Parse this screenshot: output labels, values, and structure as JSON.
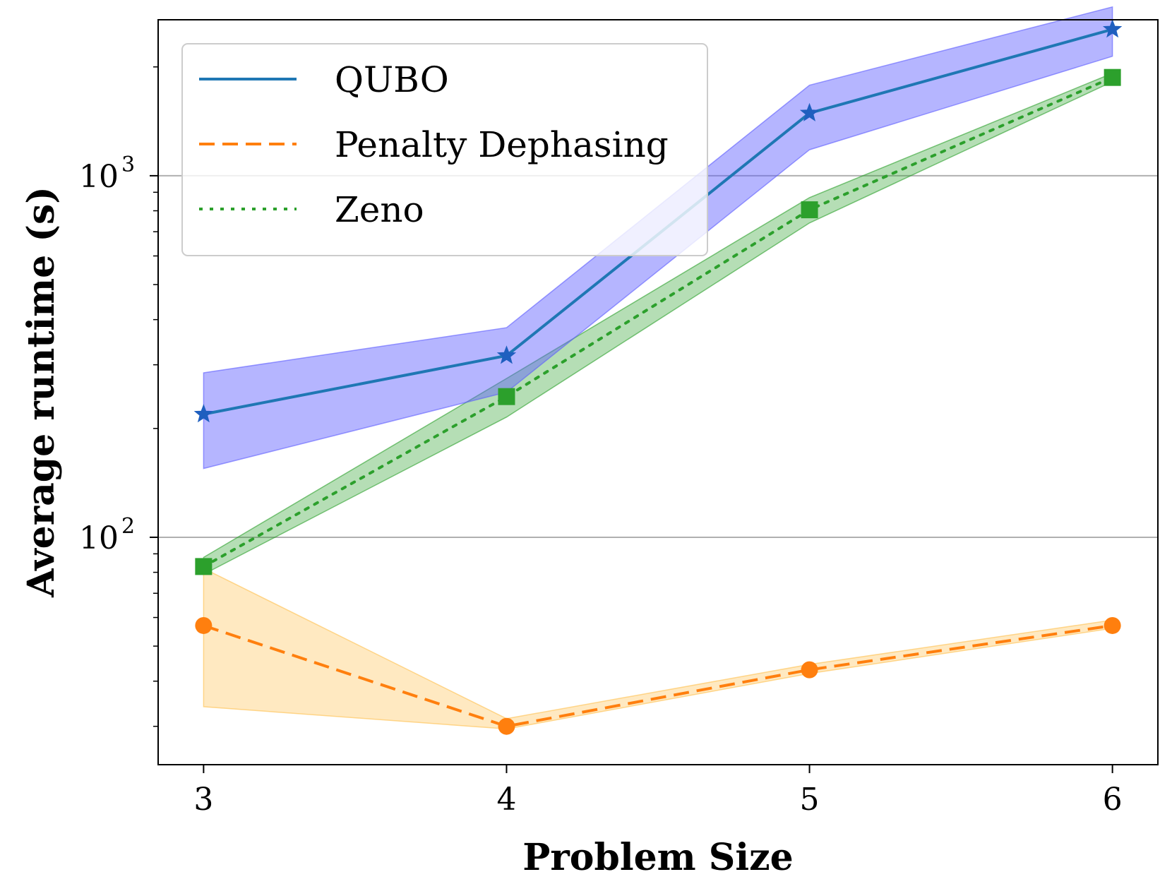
{
  "chart_data": {
    "type": "line",
    "xlabel": "Problem Size",
    "ylabel": "Average runtime (s)",
    "x": [
      3,
      4,
      5,
      6
    ],
    "xlim": [
      2.85,
      6.15
    ],
    "ylim": [
      23.5,
      2700
    ],
    "yscale": "log",
    "x_ticks": [
      "3",
      "4",
      "5",
      "6"
    ],
    "y_ticks": [
      {
        "value": 100,
        "base": "10",
        "exp": "2"
      },
      {
        "value": 1000,
        "base": "10",
        "exp": "3"
      }
    ],
    "grid": "horizontal major",
    "legend_position": "top-left",
    "series": [
      {
        "name": "QUBO",
        "color": "#1f77b4",
        "band_color": "#5b5bff",
        "marker_color": "#1f5fbf",
        "line_style": "solid",
        "marker": "star",
        "values": [
          219,
          318,
          1490,
          2540
        ],
        "lower": [
          155,
          252,
          1180,
          2140
        ],
        "upper": [
          285,
          380,
          1780,
          2930
        ]
      },
      {
        "name": "Penalty Dephasing",
        "color": "#ff7f0e",
        "band_color": "#ffc04d",
        "marker_color": "#ff7f0e",
        "line_style": "dashed",
        "marker": "circle",
        "values": [
          57,
          30,
          43,
          57
        ],
        "lower": [
          34,
          29.5,
          42,
          56
        ],
        "upper": [
          82,
          31.5,
          44.5,
          59
        ]
      },
      {
        "name": "Zeno",
        "color": "#2ca02c",
        "band_color": "#2ca02c",
        "marker_color": "#2ca02c",
        "line_style": "dotted",
        "marker": "square",
        "values": [
          83,
          245,
          805,
          1870
        ],
        "lower": [
          79,
          215,
          740,
          1820
        ],
        "upper": [
          88,
          275,
          870,
          1920
        ]
      }
    ]
  }
}
